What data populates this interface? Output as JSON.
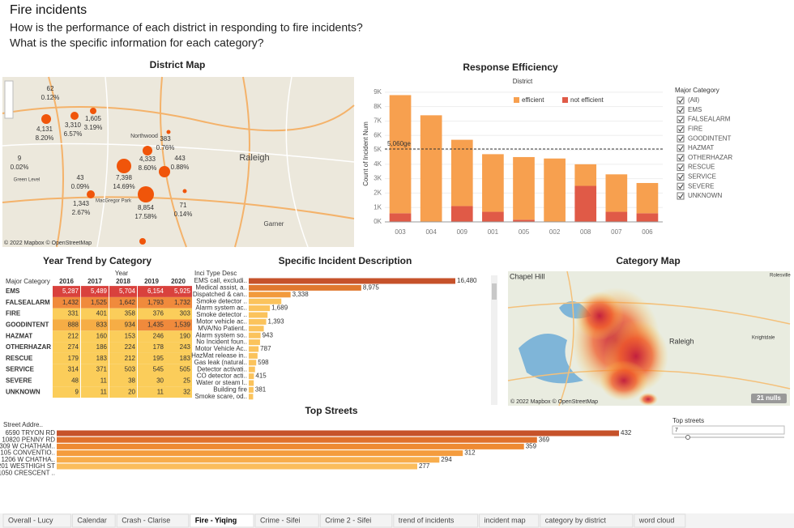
{
  "header": {
    "title": "Fire incidents",
    "questions": [
      "How is the performance of each district in responding to fire incidents?",
      "What is the specific information for each category?"
    ]
  },
  "district_map": {
    "title": "District Map",
    "labels": [
      {
        "count": "62",
        "pct": "0.12%"
      },
      {
        "count": "1,605",
        "pct": "3.19%"
      },
      {
        "count": "4,131",
        "pct": "8.20%"
      },
      {
        "count": "3,310",
        "pct": "6.57%"
      },
      {
        "count": "383",
        "pct": "0.76%"
      },
      {
        "count": "9",
        "pct": "0.02%"
      },
      {
        "count": "4,333",
        "pct": "8.60%"
      },
      {
        "count": "443",
        "pct": "0.88%"
      },
      {
        "count": "7,398",
        "pct": "14.69%"
      },
      {
        "count": "43",
        "pct": "0.09%"
      },
      {
        "count": "1,343",
        "pct": "2.67%"
      },
      {
        "count": "8,854",
        "pct": "17.58%"
      },
      {
        "count": "71",
        "pct": "0.14%"
      }
    ],
    "places": [
      "Raleigh",
      "Garner",
      "Northwood",
      "Green Level",
      "MacGregor Park"
    ],
    "credit": "© 2022 Mapbox © OpenStreetMap"
  },
  "response_efficiency": {
    "type": "bar",
    "title": "Response Efficiency",
    "legend_title": "District",
    "y_label": "Count of Incident Num",
    "categories": [
      "003",
      "004",
      "009",
      "001",
      "005",
      "002",
      "008",
      "007",
      "006"
    ],
    "series": [
      {
        "name": "not efficient",
        "color": "#e05a47",
        "values": [
          600,
          0,
          1100,
          700,
          150,
          0,
          2500,
          700,
          600
        ]
      },
      {
        "name": "efficient",
        "color": "#f7a04f",
        "values": [
          8200,
          7400,
          4600,
          4000,
          4350,
          4400,
          1500,
          2600,
          2100
        ]
      }
    ],
    "ylim": [
      0,
      9500
    ],
    "yticks": [
      {
        "value": 0,
        "label": "0K"
      },
      {
        "value": 1000,
        "label": "1K"
      },
      {
        "value": 2000,
        "label": "2K"
      },
      {
        "value": 3000,
        "label": "3K"
      },
      {
        "value": 4000,
        "label": "4K"
      },
      {
        "value": 5000,
        "label": "5K"
      },
      {
        "value": 6000,
        "label": "6K"
      },
      {
        "value": 7000,
        "label": "7K"
      },
      {
        "value": 8000,
        "label": "8K"
      },
      {
        "value": 9000,
        "label": "9K"
      }
    ],
    "reference_line": {
      "value": 5060,
      "label": "5,060ge"
    }
  },
  "filter": {
    "title": "Major Category",
    "items": [
      "(All)",
      "EMS",
      "FALSEALARM",
      "FIRE",
      "GOODINTENT",
      "HAZMAT",
      "OTHERHAZAR",
      "RESCUE",
      "SERVICE",
      "SEVERE",
      "UNKNOWN"
    ]
  },
  "year_trend": {
    "title": "Year Trend by Category",
    "column_group": "Year",
    "row_header": "Major Category",
    "columns": [
      "2016",
      "2017",
      "2018",
      "2019",
      "2020"
    ],
    "rows": [
      [
        "EMS",
        "5,287",
        "5,489",
        "5,704",
        "6,154",
        "5,925"
      ],
      [
        "FALSEALARM",
        "1,432",
        "1,525",
        "1,642",
        "1,793",
        "1,732"
      ],
      [
        "FIRE",
        "331",
        "401",
        "358",
        "376",
        "303"
      ],
      [
        "GOODINTENT",
        "888",
        "833",
        "934",
        "1,435",
        "1,539"
      ],
      [
        "HAZMAT",
        "212",
        "160",
        "153",
        "246",
        "190"
      ],
      [
        "OTHERHAZAR",
        "274",
        "186",
        "224",
        "178",
        "243"
      ],
      [
        "RESCUE",
        "179",
        "183",
        "212",
        "195",
        "183"
      ],
      [
        "SERVICE",
        "314",
        "371",
        "503",
        "545",
        "505"
      ],
      [
        "SEVERE",
        "48",
        "11",
        "38",
        "30",
        "25"
      ],
      [
        "UNKNOWN",
        "9",
        "11",
        "20",
        "11",
        "32"
      ]
    ]
  },
  "specific_incident": {
    "type": "bar",
    "title": "Specific Incident Description",
    "header": "Inci Type Desc",
    "categories": [
      "EMS call, excludi..",
      "Medical assist, a..",
      "Dispatched & can..",
      "Smoke detector ..",
      "Alarm system ac..",
      "Smoke detector ..",
      "Motor vehicle ac..",
      "MVA/No Patient..",
      "Alarm system so..",
      "No Incident foun..",
      "Motor Vehicle Ac..",
      "HazMat release in..",
      "Gas leak (natural..",
      "Detector activati..",
      "CO detector acti..",
      "Water or steam l..",
      "Building fire",
      "Smoke scare, od.."
    ],
    "values": [
      16480,
      8975,
      3338,
      2600,
      1689,
      1500,
      1393,
      1200,
      943,
      900,
      787,
      700,
      598,
      500,
      415,
      400,
      381,
      350
    ],
    "value_labels": [
      "16,480",
      "8,975",
      "3,338",
      null,
      "1,689",
      null,
      "1,393",
      null,
      "943",
      null,
      "787",
      null,
      "598",
      null,
      "415",
      null,
      "381",
      null
    ],
    "xlim": [
      0,
      16480
    ]
  },
  "category_map": {
    "title": "Category Map",
    "places": [
      "Chapel Hill",
      "Raleigh",
      "Knightdale",
      "Rolesville"
    ],
    "nulls": "21 nulls",
    "credit": "© 2022 Mapbox © OpenStreetMap"
  },
  "top_streets": {
    "type": "bar",
    "title": "Top Streets",
    "header": "Street Addre..",
    "categories": [
      "6590 TRYON RD",
      "10820 PENNY RD",
      "309 W CHATHAM..",
      "105 CONVENTIO..",
      "1206 W CHATHA..",
      "201 WESTHIGH ST",
      "1050 CRESCENT .."
    ],
    "values": [
      432,
      369,
      359,
      312,
      294,
      277,
      null
    ],
    "xlim": [
      0,
      432
    ]
  },
  "slider": {
    "title": "Top streets",
    "value": "7"
  },
  "tabs": {
    "items": [
      "Overall - Lucy",
      "Calendar",
      "Crash - Clarise",
      "Fire - Yiqing",
      "Crime - Sifei",
      "Crime 2 - Sifei",
      "trend of incidents",
      "incident map",
      "category by district",
      "word cloud"
    ],
    "active": 3
  }
}
